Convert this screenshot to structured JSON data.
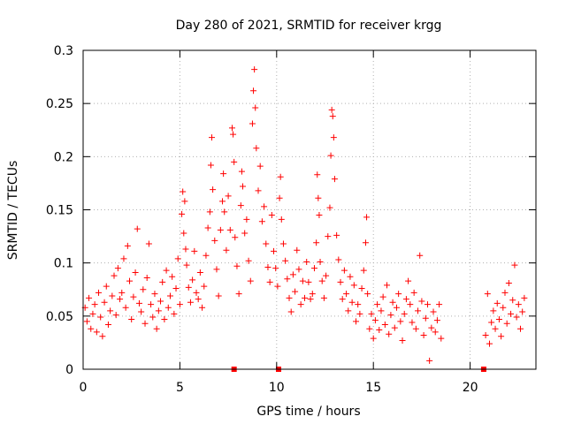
{
  "chart_data": {
    "type": "scatter",
    "title": "Day 280 of 2021, SRMTID for receiver krgg",
    "xlabel": "GPS time / hours",
    "ylabel": "SRMTID / TECUs",
    "xlim": [
      0,
      23.4
    ],
    "ylim": [
      0,
      0.3
    ],
    "x_ticks": [
      0,
      5,
      10,
      15,
      20
    ],
    "x_tick_labels": [
      "0",
      "5",
      "10",
      "15",
      "20"
    ],
    "y_ticks": [
      0,
      0.05,
      0.1,
      0.15,
      0.2,
      0.25,
      0.3
    ],
    "y_tick_labels": [
      "0",
      "0.05",
      "0.1",
      "0.15",
      "0.2",
      "0.25",
      "0.3"
    ],
    "grid": true,
    "legend": "none",
    "marker": "+",
    "color": "#ff0000",
    "series": [
      {
        "name": "SRMTID",
        "points": [
          [
            0.1,
            0.058
          ],
          [
            0.2,
            0.045
          ],
          [
            0.3,
            0.067
          ],
          [
            0.4,
            0.038
          ],
          [
            0.5,
            0.052
          ],
          [
            0.6,
            0.061
          ],
          [
            0.7,
            0.035
          ],
          [
            0.8,
            0.072
          ],
          [
            0.9,
            0.049
          ],
          [
            1.0,
            0.031
          ],
          [
            1.1,
            0.063
          ],
          [
            1.2,
            0.078
          ],
          [
            1.3,
            0.042
          ],
          [
            1.4,
            0.055
          ],
          [
            1.5,
            0.069
          ],
          [
            1.6,
            0.088
          ],
          [
            1.7,
            0.051
          ],
          [
            1.8,
            0.095
          ],
          [
            1.9,
            0.066
          ],
          [
            2.0,
            0.072
          ],
          [
            2.1,
            0.104
          ],
          [
            2.2,
            0.058
          ],
          [
            2.3,
            0.116
          ],
          [
            2.4,
            0.083
          ],
          [
            2.5,
            0.047
          ],
          [
            2.6,
            0.068
          ],
          [
            2.7,
            0.091
          ],
          [
            2.8,
            0.132
          ],
          [
            2.9,
            0.062
          ],
          [
            3.0,
            0.054
          ],
          [
            3.1,
            0.075
          ],
          [
            3.2,
            0.043
          ],
          [
            3.3,
            0.086
          ],
          [
            3.4,
            0.118
          ],
          [
            3.5,
            0.061
          ],
          [
            3.6,
            0.049
          ],
          [
            3.7,
            0.071
          ],
          [
            3.8,
            0.038
          ],
          [
            3.9,
            0.055
          ],
          [
            4.0,
            0.064
          ],
          [
            4.1,
            0.082
          ],
          [
            4.2,
            0.047
          ],
          [
            4.3,
            0.093
          ],
          [
            4.4,
            0.058
          ],
          [
            4.5,
            0.069
          ],
          [
            4.6,
            0.087
          ],
          [
            4.7,
            0.052
          ],
          [
            4.8,
            0.076
          ],
          [
            4.9,
            0.104
          ],
          [
            5.0,
            0.061
          ],
          [
            5.1,
            0.146
          ],
          [
            5.15,
            0.167
          ],
          [
            5.2,
            0.128
          ],
          [
            5.25,
            0.158
          ],
          [
            5.3,
            0.113
          ],
          [
            5.35,
            0.098
          ],
          [
            5.45,
            0.077
          ],
          [
            5.55,
            0.063
          ],
          [
            5.65,
            0.084
          ],
          [
            5.75,
            0.111
          ],
          [
            5.85,
            0.072
          ],
          [
            5.95,
            0.066
          ],
          [
            6.05,
            0.091
          ],
          [
            6.15,
            0.058
          ],
          [
            6.25,
            0.078
          ],
          [
            6.35,
            0.107
          ],
          [
            6.45,
            0.133
          ],
          [
            6.55,
            0.148
          ],
          [
            6.6,
            0.192
          ],
          [
            6.65,
            0.218
          ],
          [
            6.7,
            0.169
          ],
          [
            6.8,
            0.121
          ],
          [
            6.9,
            0.094
          ],
          [
            7.0,
            0.069
          ],
          [
            7.1,
            0.131
          ],
          [
            7.2,
            0.158
          ],
          [
            7.25,
            0.184
          ],
          [
            7.3,
            0.148
          ],
          [
            7.4,
            0.112
          ],
          [
            7.5,
            0.163
          ],
          [
            7.6,
            0.131
          ],
          [
            7.7,
            0.227
          ],
          [
            7.75,
            0.221
          ],
          [
            7.8,
            0.195
          ],
          [
            7.85,
            0.124
          ],
          [
            7.95,
            0.097
          ],
          [
            8.05,
            0.071
          ],
          [
            8.15,
            0.154
          ],
          [
            8.2,
            0.186
          ],
          [
            8.25,
            0.172
          ],
          [
            8.35,
            0.128
          ],
          [
            8.45,
            0.141
          ],
          [
            8.55,
            0.102
          ],
          [
            8.65,
            0.083
          ],
          [
            8.75,
            0.231
          ],
          [
            8.8,
            0.262
          ],
          [
            8.85,
            0.282
          ],
          [
            8.9,
            0.246
          ],
          [
            8.95,
            0.208
          ],
          [
            9.05,
            0.168
          ],
          [
            9.15,
            0.191
          ],
          [
            9.25,
            0.139
          ],
          [
            9.35,
            0.153
          ],
          [
            9.45,
            0.118
          ],
          [
            9.55,
            0.096
          ],
          [
            9.65,
            0.082
          ],
          [
            9.75,
            0.145
          ],
          [
            9.85,
            0.111
          ],
          [
            9.95,
            0.095
          ],
          [
            10.05,
            0.078
          ],
          [
            10.15,
            0.161
          ],
          [
            10.2,
            0.181
          ],
          [
            10.25,
            0.141
          ],
          [
            10.35,
            0.118
          ],
          [
            10.45,
            0.102
          ],
          [
            10.55,
            0.085
          ],
          [
            10.65,
            0.067
          ],
          [
            10.75,
            0.054
          ],
          [
            10.85,
            0.089
          ],
          [
            10.95,
            0.073
          ],
          [
            11.05,
            0.112
          ],
          [
            11.15,
            0.094
          ],
          [
            11.25,
            0.061
          ],
          [
            11.35,
            0.083
          ],
          [
            11.45,
            0.067
          ],
          [
            11.55,
            0.101
          ],
          [
            11.65,
            0.082
          ],
          [
            11.75,
            0.066
          ],
          [
            11.85,
            0.071
          ],
          [
            11.95,
            0.095
          ],
          [
            12.05,
            0.119
          ],
          [
            12.1,
            0.183
          ],
          [
            12.15,
            0.161
          ],
          [
            12.2,
            0.145
          ],
          [
            12.25,
            0.101
          ],
          [
            12.35,
            0.083
          ],
          [
            12.45,
            0.067
          ],
          [
            12.55,
            0.088
          ],
          [
            12.65,
            0.125
          ],
          [
            12.75,
            0.152
          ],
          [
            12.8,
            0.201
          ],
          [
            12.85,
            0.244
          ],
          [
            12.9,
            0.238
          ],
          [
            12.95,
            0.218
          ],
          [
            13.0,
            0.179
          ],
          [
            13.1,
            0.126
          ],
          [
            13.2,
            0.103
          ],
          [
            13.3,
            0.082
          ],
          [
            13.4,
            0.066
          ],
          [
            13.5,
            0.093
          ],
          [
            13.6,
            0.071
          ],
          [
            13.7,
            0.055
          ],
          [
            13.8,
            0.087
          ],
          [
            13.9,
            0.063
          ],
          [
            14.0,
            0.079
          ],
          [
            14.1,
            0.045
          ],
          [
            14.2,
            0.061
          ],
          [
            14.3,
            0.052
          ],
          [
            14.4,
            0.076
          ],
          [
            14.5,
            0.093
          ],
          [
            14.6,
            0.119
          ],
          [
            14.65,
            0.143
          ],
          [
            14.7,
            0.071
          ],
          [
            14.8,
            0.038
          ],
          [
            14.9,
            0.052
          ],
          [
            15.0,
            0.029
          ],
          [
            15.1,
            0.046
          ],
          [
            15.2,
            0.061
          ],
          [
            15.3,
            0.037
          ],
          [
            15.4,
            0.055
          ],
          [
            15.5,
            0.068
          ],
          [
            15.6,
            0.042
          ],
          [
            15.7,
            0.079
          ],
          [
            15.8,
            0.033
          ],
          [
            15.9,
            0.051
          ],
          [
            16.0,
            0.063
          ],
          [
            16.1,
            0.039
          ],
          [
            16.2,
            0.058
          ],
          [
            16.3,
            0.071
          ],
          [
            16.4,
            0.045
          ],
          [
            16.5,
            0.027
          ],
          [
            16.6,
            0.052
          ],
          [
            16.7,
            0.066
          ],
          [
            16.8,
            0.083
          ],
          [
            16.9,
            0.061
          ],
          [
            17.0,
            0.044
          ],
          [
            17.1,
            0.072
          ],
          [
            17.2,
            0.038
          ],
          [
            17.3,
            0.055
          ],
          [
            17.4,
            0.107
          ],
          [
            17.5,
            0.064
          ],
          [
            17.6,
            0.032
          ],
          [
            17.7,
            0.048
          ],
          [
            17.8,
            0.061
          ],
          [
            17.9,
            0.008
          ],
          [
            18.0,
            0.039
          ],
          [
            18.1,
            0.054
          ],
          [
            18.2,
            0.035
          ],
          [
            18.3,
            0.046
          ],
          [
            18.4,
            0.061
          ],
          [
            18.5,
            0.029
          ],
          [
            20.8,
            0.032
          ],
          [
            20.9,
            0.071
          ],
          [
            21.0,
            0.024
          ],
          [
            21.1,
            0.044
          ],
          [
            21.2,
            0.055
          ],
          [
            21.3,
            0.038
          ],
          [
            21.4,
            0.062
          ],
          [
            21.5,
            0.047
          ],
          [
            21.6,
            0.031
          ],
          [
            21.7,
            0.058
          ],
          [
            21.8,
            0.072
          ],
          [
            21.9,
            0.043
          ],
          [
            22.0,
            0.081
          ],
          [
            22.1,
            0.052
          ],
          [
            22.2,
            0.065
          ],
          [
            22.3,
            0.098
          ],
          [
            22.4,
            0.049
          ],
          [
            22.5,
            0.061
          ],
          [
            22.6,
            0.038
          ],
          [
            22.7,
            0.054
          ],
          [
            22.8,
            0.067
          ]
        ]
      }
    ],
    "baseline_markers": [
      7.8,
      10.1,
      20.7
    ]
  }
}
